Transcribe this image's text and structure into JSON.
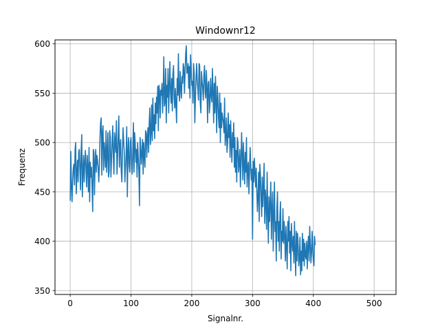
{
  "chart_data": {
    "type": "line",
    "title": "Windownr12",
    "xlabel": "Signalnr.",
    "ylabel": "Frequenz",
    "xlim": [
      -25,
      536
    ],
    "ylim": [
      346,
      604
    ],
    "x_ticks": [
      0,
      100,
      200,
      300,
      400,
      500
    ],
    "y_ticks": [
      350,
      400,
      450,
      500,
      550,
      600
    ],
    "grid": true,
    "line_color": "#1f77b4",
    "series": [
      {
        "x_start": 0,
        "x_step": 1,
        "values": [
          441,
          491,
          455,
          440,
          462,
          473,
          478,
          457,
          492,
          500,
          448,
          470,
          482,
          460,
          490,
          493,
          472,
          452,
          491,
          508,
          445,
          470,
          487,
          460,
          480,
          492,
          473,
          455,
          487,
          475,
          450,
          495,
          440,
          480,
          465,
          475,
          455,
          430,
          493,
          490,
          447,
          480,
          493,
          470,
          487,
          482,
          475,
          460,
          475,
          505,
          520,
          525,
          467,
          510,
          517,
          472,
          500,
          489,
          475,
          512,
          470,
          490,
          510,
          465,
          470,
          512,
          505,
          465,
          483,
          500,
          517,
          485,
          468,
          510,
          500,
          490,
          522,
          468,
          487,
          507,
          527,
          475,
          496,
          503,
          471,
          460,
          490,
          515,
          501,
          490,
          460,
          475,
          486,
          516,
          445,
          490,
          505,
          477,
          470,
          500,
          505,
          480,
          468,
          490,
          520,
          470,
          510,
          498,
          480,
          493,
          465,
          500,
          485,
          470,
          436,
          505,
          495,
          478,
          490,
          503,
          468,
          500,
          487,
          475,
          512,
          510,
          485,
          507,
          515,
          490,
          520,
          535,
          498,
          510,
          538,
          502,
          545,
          512,
          528,
          504,
          540,
          519,
          546,
          530,
          557,
          512,
          558,
          552,
          525,
          553,
          548,
          560,
          530,
          551,
          587,
          537,
          541,
          575,
          520,
          558,
          546,
          575,
          530,
          556,
          582,
          551,
          540,
          565,
          532,
          570,
          578,
          545,
          535,
          555,
          538,
          520,
          565,
          548,
          590,
          550,
          542,
          572,
          555,
          545,
          567,
          560,
          580,
          576,
          550,
          570,
          590,
          598,
          570,
          572,
          580,
          555,
          577,
          545,
          589,
          573,
          558,
          562,
          540,
          580,
          570,
          520,
          545,
          565,
          580,
          563,
          555,
          543,
          580,
          578,
          540,
          530,
          572,
          562,
          555,
          543,
          568,
          578,
          552,
          545,
          573,
          555,
          520,
          560,
          562,
          530,
          540,
          565,
          548,
          541,
          575,
          550,
          520,
          560,
          530,
          567,
          540,
          510,
          557,
          545,
          525,
          515,
          550,
          500,
          540,
          515,
          530,
          525,
          520,
          510,
          545,
          497,
          508,
          525,
          490,
          500,
          530,
          505,
          518,
          485,
          522,
          498,
          480,
          510,
          495,
          520,
          475,
          505,
          470,
          492,
          460,
          505,
          500,
          470,
          480,
          493,
          455,
          480,
          510,
          487,
          462,
          500,
          478,
          458,
          490,
          470,
          505,
          455,
          475,
          480,
          448,
          470,
          495,
          477,
          462,
          473,
          402,
          481,
          460,
          484,
          470,
          455,
          474,
          452,
          430,
          445,
          470,
          420,
          478,
          467,
          444,
          425,
          465,
          435,
          455,
          479,
          418,
          452,
          440,
          412,
          470,
          430,
          398,
          445,
          420,
          438,
          460,
          402,
          432,
          450,
          390,
          425,
          460,
          410,
          420,
          380,
          432,
          450,
          400,
          420,
          390,
          425,
          440,
          382,
          410,
          400,
          433,
          398,
          420,
          405,
          380,
          415,
          395,
          372,
          420,
          400,
          425,
          388,
          410,
          370,
          418,
          398,
          390,
          405,
          378,
          420,
          390,
          365,
          410,
          380,
          408,
          395,
          375,
          382,
          404,
          366,
          390,
          370,
          408,
          380,
          402,
          375,
          398,
          385,
          382,
          400,
          372,
          395,
          405,
          380,
          415,
          398,
          378,
          388,
          410,
          392,
          380,
          375,
          405,
          396
        ]
      }
    ]
  }
}
